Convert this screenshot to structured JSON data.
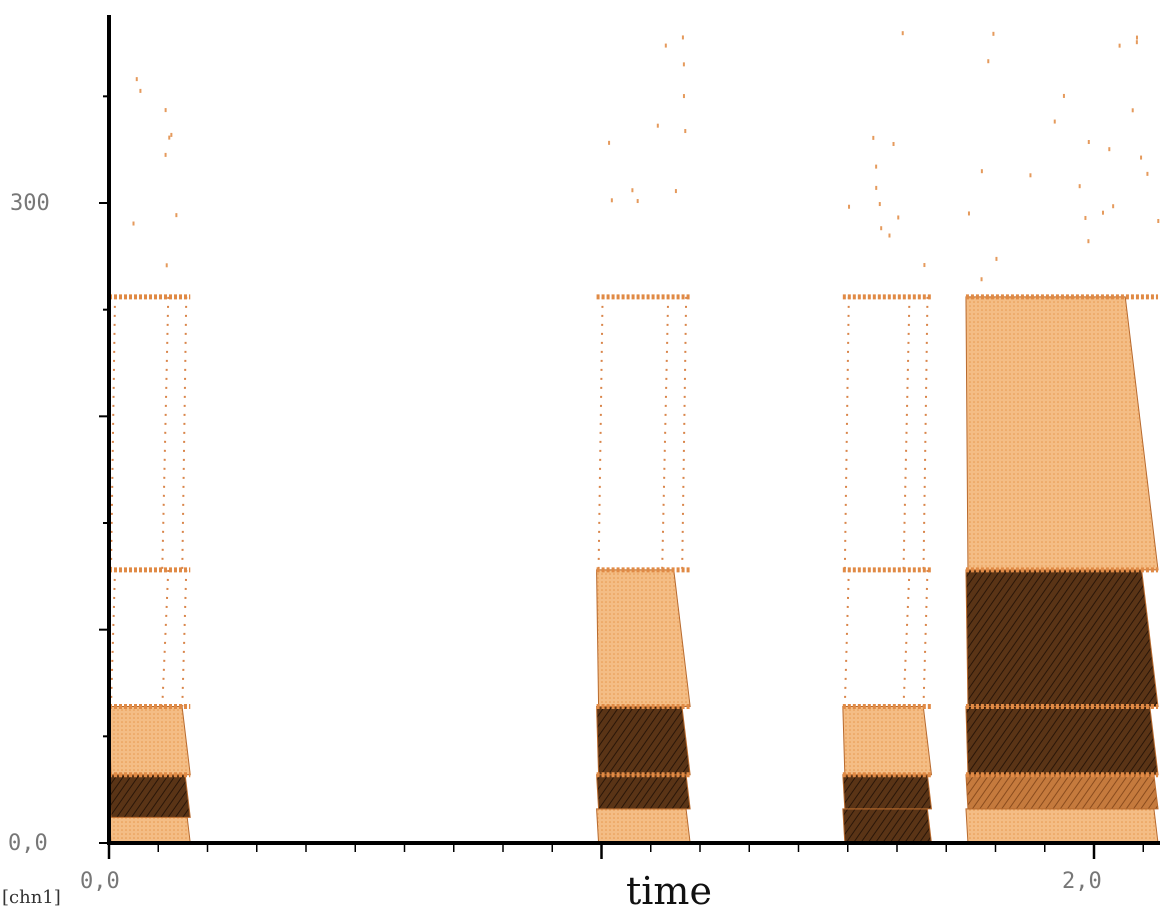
{
  "chart_data": {
    "type": "heatmap",
    "title": "",
    "xlabel": "time",
    "ylabel": "",
    "channel_label": "[chn1]",
    "xlim": [
      0,
      2.13
    ],
    "ylim": [
      0,
      390
    ],
    "x_tick_labels": [
      {
        "value": 0,
        "text": "0,0"
      },
      {
        "value": 2,
        "text": "2,0"
      }
    ],
    "y_tick_labels": [
      {
        "value": 0,
        "text": "0,0"
      },
      {
        "value": 300,
        "text": "300"
      }
    ],
    "x_minor_step": 0.1,
    "y_minor_step": 50,
    "harmonic_lines": [
      32,
      64,
      128,
      256
    ],
    "colors": {
      "light": "#f2b47a",
      "mid": "#d98a4a",
      "dark": "#4a2a10",
      "axis": "#000000"
    },
    "events": [
      {
        "t0": 0.0,
        "t1": 0.165,
        "bands": [
          {
            "y0": 0,
            "y1": 16,
            "tone": "light"
          },
          {
            "y0": 12,
            "y1": 32,
            "tone": "dark"
          },
          {
            "y0": 32,
            "y1": 64,
            "tone": "light"
          },
          {
            "y0": 64,
            "y1": 128,
            "tone": "sparse"
          },
          {
            "y0": 128,
            "y1": 256,
            "tone": "sparse"
          }
        ]
      },
      {
        "t0": 0.99,
        "t1": 1.18,
        "bands": [
          {
            "y0": 0,
            "y1": 16,
            "tone": "light"
          },
          {
            "y0": 16,
            "y1": 32,
            "tone": "dark"
          },
          {
            "y0": 32,
            "y1": 64,
            "tone": "dark"
          },
          {
            "y0": 64,
            "y1": 128,
            "tone": "light"
          },
          {
            "y0": 128,
            "y1": 256,
            "tone": "sparse"
          }
        ]
      },
      {
        "t0": 1.49,
        "t1": 1.67,
        "bands": [
          {
            "y0": 0,
            "y1": 16,
            "tone": "dark"
          },
          {
            "y0": 16,
            "y1": 32,
            "tone": "dark"
          },
          {
            "y0": 32,
            "y1": 64,
            "tone": "light"
          },
          {
            "y0": 64,
            "y1": 128,
            "tone": "sparse"
          },
          {
            "y0": 128,
            "y1": 256,
            "tone": "sparse"
          }
        ]
      },
      {
        "t0": 1.74,
        "t1": 2.13,
        "bands": [
          {
            "y0": 0,
            "y1": 16,
            "tone": "light"
          },
          {
            "y0": 16,
            "y1": 32,
            "tone": "mid"
          },
          {
            "y0": 32,
            "y1": 64,
            "tone": "dark"
          },
          {
            "y0": 64,
            "y1": 128,
            "tone": "dark"
          },
          {
            "y0": 128,
            "y1": 256,
            "tone": "light"
          }
        ]
      }
    ]
  }
}
